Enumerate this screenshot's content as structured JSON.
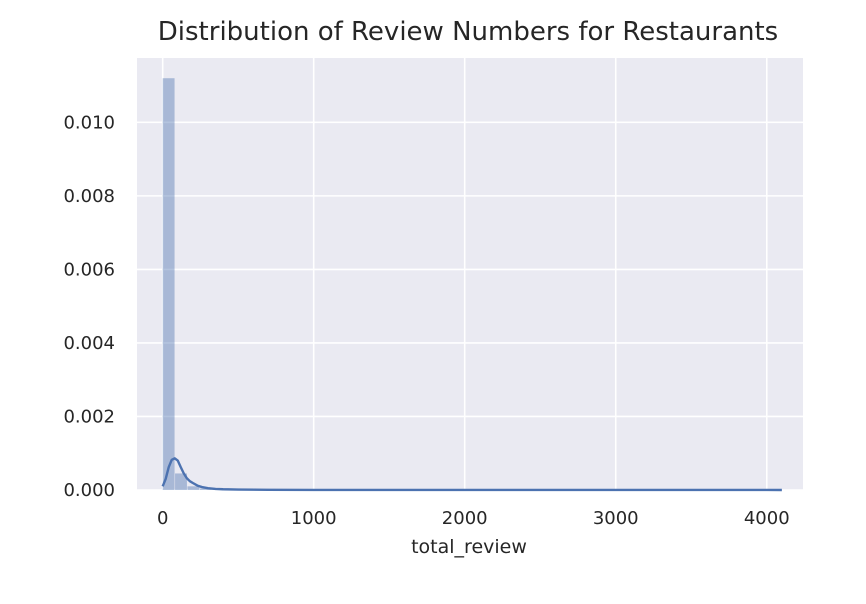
{
  "chart_data": {
    "type": "histogram",
    "title": "Distribution of Review Numbers for Restaurants",
    "xlabel": "total_review",
    "ylabel": "",
    "xlim": [
      -170,
      4240
    ],
    "ylim": [
      0,
      0.01175
    ],
    "xticks": [
      0,
      1000,
      2000,
      3000,
      4000
    ],
    "xtick_labels": [
      "0",
      "1000",
      "2000",
      "3000",
      "4000"
    ],
    "yticks": [
      0,
      0.002,
      0.004,
      0.006,
      0.008,
      0.01
    ],
    "ytick_labels": [
      "0.000",
      "0.002",
      "0.004",
      "0.006",
      "0.008",
      "0.010"
    ],
    "grid": true,
    "histogram": {
      "bin_width": 82,
      "bins": [
        {
          "x0": 0,
          "x1": 82,
          "density": 0.0112
        },
        {
          "x0": 82,
          "x1": 164,
          "density": 0.00045
        },
        {
          "x0": 164,
          "x1": 246,
          "density": 0.0001
        },
        {
          "x0": 246,
          "x1": 328,
          "density": 4e-05
        },
        {
          "x0": 328,
          "x1": 410,
          "density": 2e-05
        },
        {
          "x0": 410,
          "x1": 492,
          "density": 1e-05
        },
        {
          "x0": 492,
          "x1": 574,
          "density": 8e-06
        },
        {
          "x0": 574,
          "x1": 656,
          "density": 5e-06
        }
      ]
    },
    "kde": {
      "x": [
        0,
        20,
        40,
        60,
        80,
        100,
        120,
        140,
        160,
        180,
        200,
        230,
        260,
        300,
        350,
        400,
        500,
        700,
        1000,
        1500,
        2000,
        3000,
        4000,
        4100
      ],
      "y": [
        0.0001,
        0.0003,
        0.00062,
        0.00082,
        0.00086,
        0.0008,
        0.00062,
        0.00045,
        0.00032,
        0.00024,
        0.00019,
        0.00012,
        8e-05,
        5e-05,
        3e-05,
        2e-05,
        1.2e-05,
        6e-06,
        3e-06,
        2e-06,
        1.5e-06,
        1e-06,
        5e-07,
        4e-07
      ]
    },
    "colors": {
      "background": "#eaeaf2",
      "grid": "#ffffff",
      "bar": "#4c72b0",
      "kde": "#4c72b0"
    }
  }
}
